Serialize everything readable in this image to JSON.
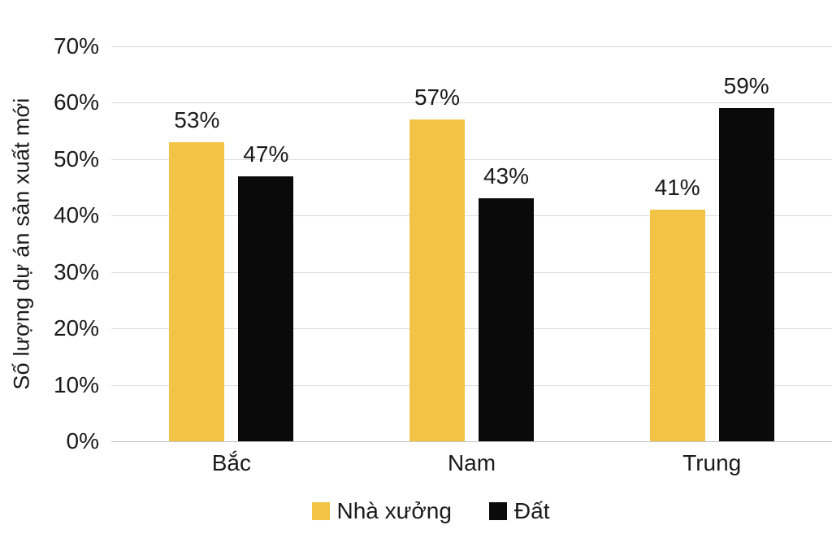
{
  "chart_data": {
    "type": "bar",
    "title": "",
    "categories": [
      "Bắc",
      "Nam",
      "Trung"
    ],
    "series": [
      {
        "name": "Nhà xưởng",
        "color": "#F2C344",
        "values": [
          53,
          57,
          41
        ]
      },
      {
        "name": "Đất",
        "color": "#0A0A0A",
        "values": [
          47,
          43,
          59
        ]
      }
    ],
    "ylabel": "Số lượng dự án sản xuất mới",
    "xlabel": "",
    "ylim": [
      0,
      70
    ],
    "ytick_step": 10,
    "ytick_suffix": "%",
    "data_label_suffix": "%",
    "grid": true,
    "legend_position": "bottom"
  },
  "colors": {
    "background": "#FFFFFF",
    "gridline": "#D9D9D9",
    "axis_line": "#C2C2C2",
    "text": "#1A1A1A"
  }
}
